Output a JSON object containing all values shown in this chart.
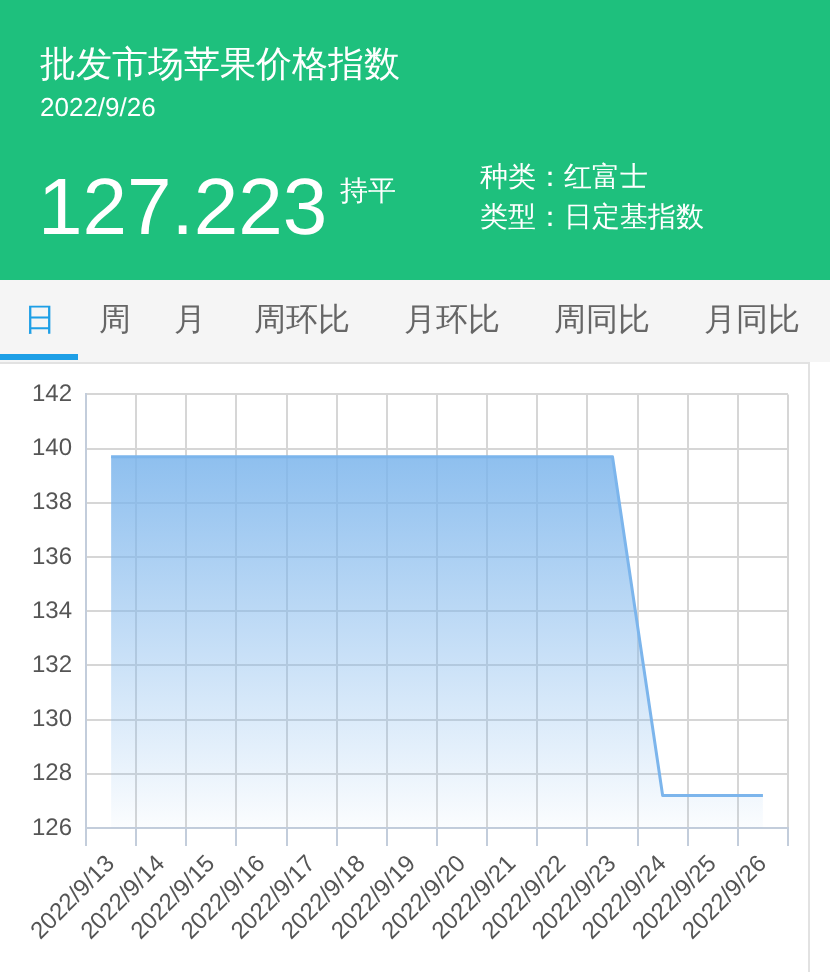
{
  "chart_data": {
    "type": "area",
    "title": "批发市场苹果价格指数",
    "subtitle": "2022/9/26",
    "annotations": [
      "127.223",
      "持平",
      "种类：红富士",
      "类型：日定基指数",
      "日",
      "周",
      "月",
      "周环比",
      "月环比",
      "周同比",
      "月同比"
    ],
    "categories": [
      "2022/9/13",
      "2022/9/14",
      "2022/9/15",
      "2022/9/16",
      "2022/9/17",
      "2022/9/18",
      "2022/9/19",
      "2022/9/20",
      "2022/9/21",
      "2022/9/22",
      "2022/9/23",
      "2022/9/24",
      "2022/9/25",
      "2022/9/26"
    ],
    "values": [
      139.7,
      139.7,
      139.7,
      139.7,
      139.7,
      139.7,
      139.7,
      139.7,
      139.7,
      139.7,
      139.7,
      127.2,
      127.2,
      127.2
    ],
    "color": "#7cb5ec",
    "ylim": [
      126,
      142
    ],
    "yticks": [
      126,
      128,
      130,
      132,
      134,
      136,
      138,
      140,
      142
    ],
    "grid": true,
    "marker": "none"
  }
}
